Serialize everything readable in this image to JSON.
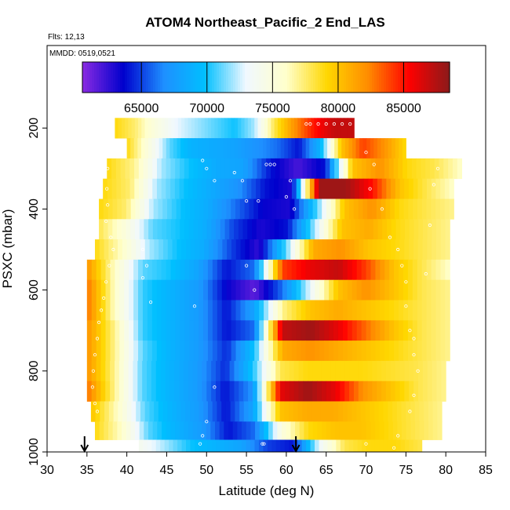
{
  "chart_data": {
    "type": "heatmap",
    "title": "ATOM4 Northeast_Pacific_2 End_LAS",
    "annotations": [
      "Flts: 12,13",
      "MMDD: 0519,0521"
    ],
    "xlabel": "Latitude (deg N)",
    "ylabel": "PSXC (mbar)",
    "xlim": [
      30,
      85
    ],
    "ylim": [
      1000,
      0
    ],
    "x_ticks": [
      "30",
      "35",
      "40",
      "45",
      "50",
      "55",
      "60",
      "65",
      "70",
      "75",
      "80",
      "85"
    ],
    "y_ticks": [
      "200",
      "400",
      "600",
      "800",
      "1000"
    ],
    "colorbar": {
      "range": [
        60500,
        88500
      ],
      "ticks": [
        "65000",
        "70000",
        "75000",
        "80000",
        "85000"
      ],
      "colors": [
        "#8a2be2",
        "#0000cd",
        "#1e90ff",
        "#00bfff",
        "#f0f8ff",
        "#ffffcc",
        "#ffd700",
        "#ff8c00",
        "#ff0000",
        "#8b1a1a"
      ]
    },
    "arrows_lat": [
      34.7,
      61.2
    ],
    "bands": [
      {
        "p": 200,
        "lat": [
          38.5,
          68.5
        ],
        "v": [
          79000,
          77500,
          75000,
          73000,
          72000,
          71000,
          70000,
          72000,
          78000,
          82000,
          85000,
          87000,
          87000
        ]
      },
      {
        "p": 250,
        "lat": [
          40,
          75
        ],
        "v": [
          79000,
          75000,
          71000,
          69000,
          68500,
          68000,
          67000,
          66000,
          64000,
          69000,
          80000,
          84000,
          82000,
          79000
        ]
      },
      {
        "p": 300,
        "lat": [
          37.5,
          82
        ],
        "v": [
          79000,
          77000,
          72000,
          70000,
          68500,
          68000,
          64000,
          62000,
          64000,
          80000,
          82000,
          79000,
          78000,
          76000
        ]
      },
      {
        "p": 350,
        "lat": [
          37,
          81
        ],
        "v": [
          79000,
          77500,
          72000,
          70000,
          68500,
          67000,
          64000,
          63000,
          88000,
          88000,
          85000,
          80000,
          78000,
          76000
        ]
      },
      {
        "p": 400,
        "lat": [
          36.5,
          81
        ],
        "v": [
          79000,
          77500,
          72000,
          70000,
          68500,
          66000,
          63500,
          63000,
          71000,
          80000,
          82000,
          79000,
          78000,
          77000
        ]
      },
      {
        "p": 450,
        "lat": [
          36.5,
          80.5
        ],
        "v": [
          78000,
          75000,
          71000,
          70000,
          68500,
          65000,
          63000,
          64000,
          72000,
          80000,
          81000,
          79000,
          78000,
          77000
        ]
      },
      {
        "p": 500,
        "lat": [
          36,
          80.5
        ],
        "v": [
          79000,
          76000,
          72000,
          70000,
          68500,
          65000,
          62500,
          71000,
          81000,
          82000,
          80000,
          79000,
          78000,
          77000
        ]
      },
      {
        "p": 550,
        "lat": [
          35,
          80.5
        ],
        "v": [
          82000,
          76000,
          71000,
          70000,
          68000,
          64000,
          66000,
          84000,
          86000,
          87000,
          84000,
          80000,
          78000,
          76000
        ]
      },
      {
        "p": 600,
        "lat": [
          35,
          80.5
        ],
        "v": [
          83000,
          76000,
          70500,
          69000,
          67500,
          63500,
          61500,
          66000,
          73000,
          80000,
          82000,
          80000,
          78000,
          77000
        ]
      },
      {
        "p": 650,
        "lat": [
          35,
          80.5
        ],
        "v": [
          83000,
          76000,
          70500,
          69000,
          67500,
          64000,
          68000,
          77000,
          80000,
          81000,
          80000,
          79000,
          78000,
          77000
        ]
      },
      {
        "p": 700,
        "lat": [
          35,
          80.5
        ],
        "v": [
          82000,
          77000,
          70500,
          69000,
          67500,
          64000,
          66000,
          87000,
          88000,
          86000,
          83000,
          80000,
          78000,
          77000
        ]
      },
      {
        "p": 750,
        "lat": [
          35,
          80.5
        ],
        "v": [
          82000,
          77000,
          71000,
          69000,
          67500,
          64500,
          70000,
          81000,
          82000,
          81000,
          80000,
          79000,
          78000,
          77000
        ]
      },
      {
        "p": 800,
        "lat": [
          35,
          80
        ],
        "v": [
          82000,
          77000,
          71000,
          69000,
          67500,
          64500,
          70000,
          78000,
          79000,
          79000,
          79000,
          78500,
          78000,
          77000
        ]
      },
      {
        "p": 850,
        "lat": [
          35,
          80
        ],
        "v": [
          83000,
          77000,
          71000,
          69000,
          67500,
          64000,
          67000,
          86000,
          88000,
          86000,
          82000,
          80000,
          78000,
          77000
        ]
      },
      {
        "p": 900,
        "lat": [
          35.5,
          79.5
        ],
        "v": [
          80000,
          76000,
          71000,
          69000,
          67500,
          64000,
          68000,
          80000,
          81000,
          81000,
          80000,
          79000,
          78000,
          77000
        ]
      },
      {
        "p": 950,
        "lat": [
          36,
          79.5
        ],
        "v": [
          79000,
          76000,
          71000,
          69000,
          67500,
          64000,
          66000,
          75000,
          79000,
          80000,
          80000,
          79000,
          78000,
          77000
        ]
      },
      {
        "p": 990,
        "lat": [
          41.5,
          77
        ],
        "v": [
          74000,
          72000,
          70000,
          69000,
          68000,
          65000,
          64000,
          73000,
          78000,
          79000,
          79000,
          78000
        ]
      }
    ],
    "points": [
      [
        35.0,
        950
      ],
      [
        35.3,
        960
      ],
      [
        35.5,
        930
      ],
      [
        38.2,
        210
      ],
      [
        38.5,
        230
      ],
      [
        37.8,
        270
      ],
      [
        38.4,
        250
      ],
      [
        37.6,
        300
      ],
      [
        37.5,
        350
      ],
      [
        37.6,
        390
      ],
      [
        37.4,
        430
      ],
      [
        38.0,
        470
      ],
      [
        38.3,
        500
      ],
      [
        37.8,
        540
      ],
      [
        37.4,
        580
      ],
      [
        37.1,
        620
      ],
      [
        36.8,
        650
      ],
      [
        36.5,
        680
      ],
      [
        36.3,
        720
      ],
      [
        36.0,
        760
      ],
      [
        35.8,
        800
      ],
      [
        35.7,
        840
      ],
      [
        36.0,
        880
      ],
      [
        36.3,
        900
      ],
      [
        42.0,
        500
      ],
      [
        42.5,
        540
      ],
      [
        42.0,
        570
      ],
      [
        43.0,
        630
      ],
      [
        48.5,
        640
      ],
      [
        49.5,
        280
      ],
      [
        50.0,
        300
      ],
      [
        51.0,
        330
      ],
      [
        50.0,
        925
      ],
      [
        49.5,
        960
      ],
      [
        49.2,
        980
      ],
      [
        51.0,
        840
      ],
      [
        53.5,
        310
      ],
      [
        54.5,
        330
      ],
      [
        55.0,
        380
      ],
      [
        56.5,
        380
      ],
      [
        57.0,
        980
      ],
      [
        57.2,
        980
      ],
      [
        57.5,
        290
      ],
      [
        58.0,
        290
      ],
      [
        58.5,
        290
      ],
      [
        60.5,
        330
      ],
      [
        60.0,
        370
      ],
      [
        61.0,
        400
      ],
      [
        62.5,
        190
      ],
      [
        63.0,
        190
      ],
      [
        64.0,
        190
      ],
      [
        65.0,
        190
      ],
      [
        66.0,
        190
      ],
      [
        67.0,
        190
      ],
      [
        68.0,
        190
      ],
      [
        69.0,
        210
      ],
      [
        70.0,
        260
      ],
      [
        71.0,
        290
      ],
      [
        70.5,
        350
      ],
      [
        72.0,
        400
      ],
      [
        73.0,
        470
      ],
      [
        74.0,
        500
      ],
      [
        74.5,
        540
      ],
      [
        75.0,
        580
      ],
      [
        75.0,
        640
      ],
      [
        75.5,
        700
      ],
      [
        76.0,
        760
      ],
      [
        76.5,
        800
      ],
      [
        76.0,
        860
      ],
      [
        75.5,
        900
      ],
      [
        74.0,
        960
      ],
      [
        73.5,
        990
      ],
      [
        79.0,
        300
      ],
      [
        78.5,
        340
      ],
      [
        78.0,
        440
      ],
      [
        77.5,
        560
      ],
      [
        76.0,
        720
      ],
      [
        70.0,
        980
      ],
      [
        55.0,
        540
      ],
      [
        56.0,
        600
      ]
    ]
  }
}
